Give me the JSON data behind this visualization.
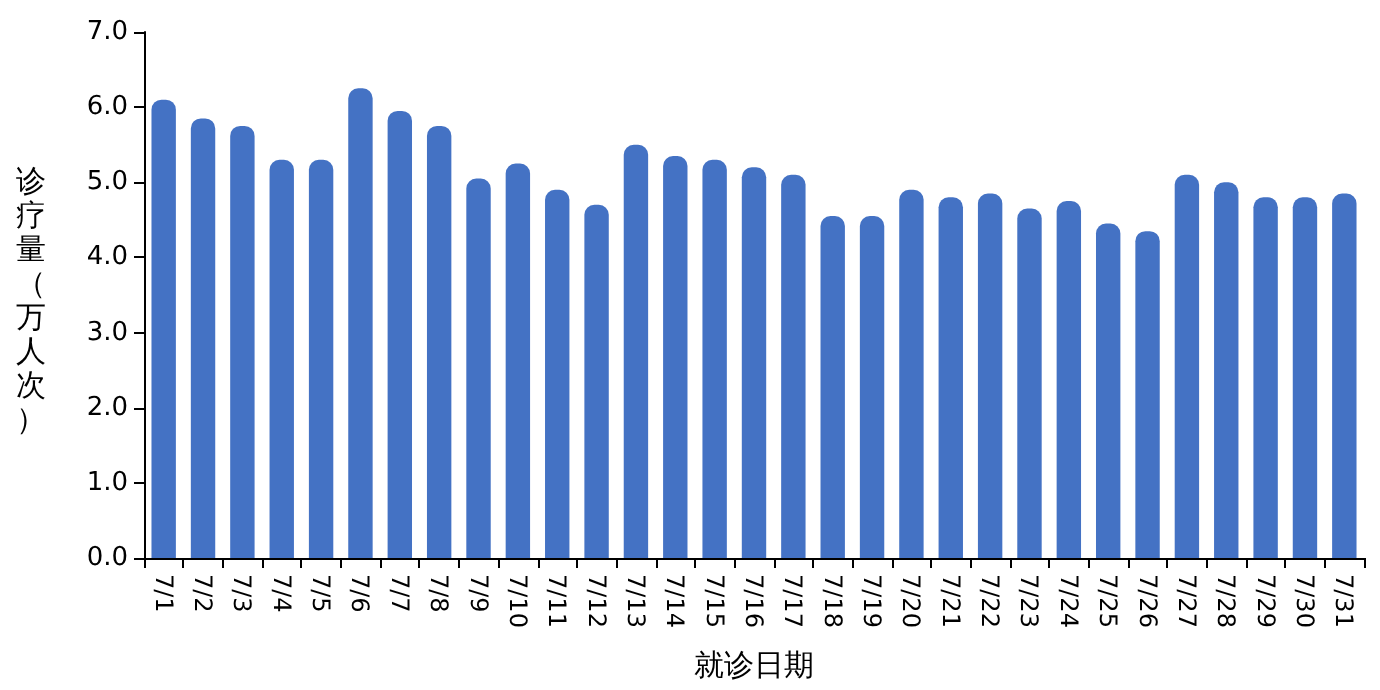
{
  "chart_data": {
    "type": "bar",
    "xlabel": "就诊日期",
    "ylabel": "诊疗量（万人次）",
    "categories": [
      "7/1",
      "7/2",
      "7/3",
      "7/4",
      "7/5",
      "7/6",
      "7/7",
      "7/8",
      "7/9",
      "7/10",
      "7/11",
      "7/12",
      "7/13",
      "7/14",
      "7/15",
      "7/16",
      "7/17",
      "7/18",
      "7/19",
      "7/20",
      "7/21",
      "7/22",
      "7/23",
      "7/24",
      "7/25",
      "7/26",
      "7/27",
      "7/28",
      "7/29",
      "7/30",
      "7/31"
    ],
    "values": [
      6.1,
      5.85,
      5.75,
      5.3,
      5.3,
      6.25,
      5.95,
      5.75,
      5.05,
      5.25,
      4.9,
      4.7,
      5.5,
      5.35,
      5.3,
      5.2,
      5.1,
      4.55,
      4.55,
      4.9,
      4.8,
      4.85,
      4.65,
      4.75,
      4.45,
      4.35,
      5.1,
      5.0,
      4.8,
      4.8,
      4.85
    ],
    "color": "#4472c4",
    "ylim": [
      0,
      7
    ],
    "yticks": [
      {
        "value": 0,
        "label": "0.0"
      },
      {
        "value": 1,
        "label": "1.0"
      },
      {
        "value": 2,
        "label": "2.0"
      },
      {
        "value": 3,
        "label": "3.0"
      },
      {
        "value": 4,
        "label": "4.0"
      },
      {
        "value": 5,
        "label": "5.0"
      },
      {
        "value": 6,
        "label": "6.0"
      },
      {
        "value": 7,
        "label": "7.0"
      }
    ],
    "grid": false
  }
}
